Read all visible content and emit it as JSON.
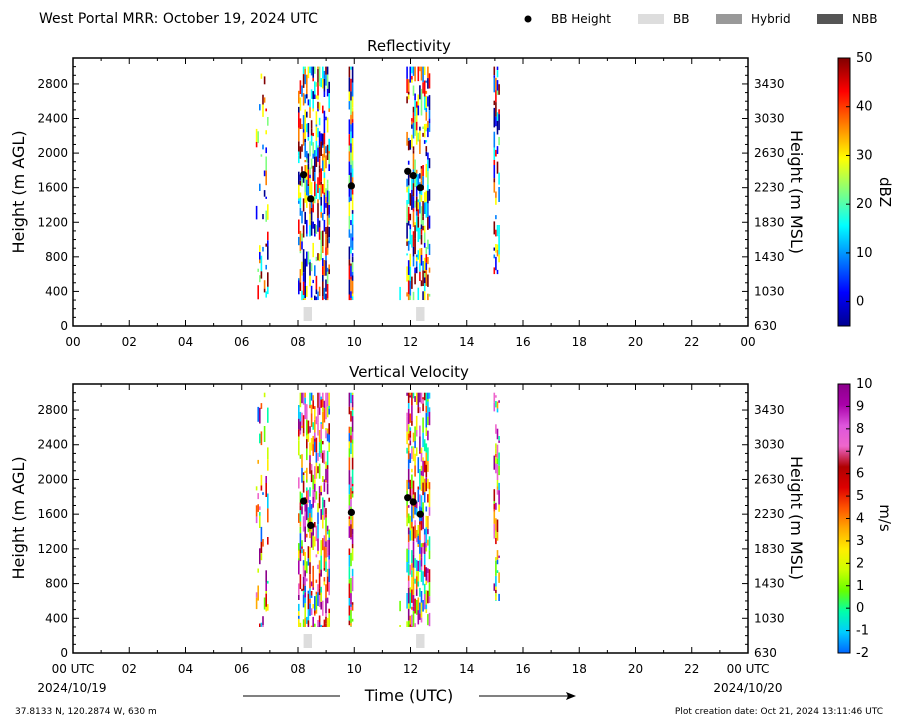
{
  "header": {
    "title": "West Portal MRR:  October 19, 2024 UTC",
    "legend": [
      {
        "label": "BB Height",
        "kind": "dot",
        "color": "#000000"
      },
      {
        "label": "BB",
        "kind": "box",
        "color": "#dddddd"
      },
      {
        "label": "Hybrid",
        "kind": "box",
        "color": "#999999"
      },
      {
        "label": "NBB",
        "kind": "box",
        "color": "#555555"
      }
    ]
  },
  "footer": {
    "location": "37.8133 N, 120.2874 W, 630 m",
    "creation": "Plot creation date: Oct 21, 2024 13:11:46 UTC",
    "xlabel": "Time (UTC)",
    "start_date": "2024/10/19",
    "end_date": "2024/10/20"
  },
  "colors": {
    "bb_band": "#dddddd",
    "marker": "#000000",
    "reflectivity_scale": [
      "#00008f",
      "#0000ff",
      "#0080ff",
      "#00ffff",
      "#80ff80",
      "#ffff00",
      "#ff8000",
      "#ff0000",
      "#800000"
    ],
    "velocity_scale": [
      "#0066ff",
      "#00ccff",
      "#00ffaa",
      "#66ff00",
      "#ccff00",
      "#ffee00",
      "#ffaa00",
      "#ff5500",
      "#dd0000",
      "#b00000",
      "#ee66cc",
      "#dd55dd",
      "#aa00aa",
      "#8b008b"
    ]
  },
  "chart_data": [
    {
      "type": "heatmap",
      "title": "Reflectivity",
      "xlabel": "",
      "ylabel": "Height (m AGL)",
      "y2label": "Height (m MSL)",
      "xlim": [
        0,
        24
      ],
      "ylim": [
        0,
        3100
      ],
      "y2lim": [
        630,
        3730
      ],
      "xticks": [
        "00",
        "02",
        "04",
        "06",
        "08",
        "10",
        "12",
        "14",
        "16",
        "18",
        "20",
        "22",
        "00"
      ],
      "yticks": [
        0,
        400,
        800,
        1200,
        1600,
        2000,
        2400,
        2800
      ],
      "y2ticks": [
        630,
        1030,
        1430,
        1830,
        2230,
        2630,
        3030,
        3430
      ],
      "colorbar": {
        "label": "dBZ",
        "range": [
          -5,
          50
        ],
        "ticks": [
          0,
          10,
          20,
          30,
          40,
          50
        ]
      },
      "echo_bands": [
        {
          "start": 6.5,
          "end": 6.9,
          "bottom": 300,
          "top": 3000,
          "density": 0.25
        },
        {
          "start": 8.0,
          "end": 9.1,
          "bottom": 300,
          "top": 3000,
          "density": 0.55
        },
        {
          "start": 9.8,
          "end": 9.95,
          "bottom": 300,
          "top": 3000,
          "density": 0.9
        },
        {
          "start": 11.6,
          "end": 11.62,
          "bottom": 300,
          "top": 600,
          "density": 0.8
        },
        {
          "start": 11.85,
          "end": 12.65,
          "bottom": 300,
          "top": 3000,
          "density": 0.6
        },
        {
          "start": 14.95,
          "end": 15.15,
          "bottom": 600,
          "top": 3000,
          "density": 0.45
        }
      ],
      "bright_band_heights": [
        {
          "time": 8.2,
          "height": 1750
        },
        {
          "time": 8.45,
          "height": 1470
        },
        {
          "time": 9.9,
          "height": 1620
        },
        {
          "time": 11.9,
          "height": 1790
        },
        {
          "time": 12.1,
          "height": 1740
        },
        {
          "time": 12.35,
          "height": 1600
        }
      ],
      "bb_flags": [
        {
          "start": 8.2,
          "end": 8.5,
          "type": "BB"
        },
        {
          "start": 12.2,
          "end": 12.5,
          "type": "BB"
        }
      ]
    },
    {
      "type": "heatmap",
      "title": "Vertical Velocity",
      "xlabel": "Time (UTC)",
      "ylabel": "Height (m AGL)",
      "y2label": "Height (m MSL)",
      "xlim": [
        0,
        24
      ],
      "ylim": [
        0,
        3100
      ],
      "y2lim": [
        630,
        3730
      ],
      "xticks": [
        "00 UTC",
        "02",
        "04",
        "06",
        "08",
        "10",
        "12",
        "14",
        "16",
        "18",
        "20",
        "22",
        "00 UTC"
      ],
      "yticks": [
        0,
        400,
        800,
        1200,
        1600,
        2000,
        2400,
        2800
      ],
      "y2ticks": [
        630,
        1030,
        1430,
        1830,
        2230,
        2630,
        3030,
        3430
      ],
      "colorbar": {
        "label": "m/s",
        "range": [
          -2,
          10
        ],
        "ticks": [
          -2,
          -1,
          0,
          1,
          2,
          3,
          4,
          5,
          6,
          7,
          8,
          9,
          10
        ]
      },
      "echo_bands": [
        {
          "start": 6.5,
          "end": 6.9,
          "bottom": 300,
          "top": 3000,
          "density": 0.25
        },
        {
          "start": 8.0,
          "end": 9.1,
          "bottom": 300,
          "top": 3000,
          "density": 0.55
        },
        {
          "start": 9.8,
          "end": 9.95,
          "bottom": 300,
          "top": 3000,
          "density": 0.9
        },
        {
          "start": 11.6,
          "end": 11.62,
          "bottom": 300,
          "top": 600,
          "density": 0.8
        },
        {
          "start": 11.85,
          "end": 12.65,
          "bottom": 300,
          "top": 3000,
          "density": 0.6
        },
        {
          "start": 14.95,
          "end": 15.15,
          "bottom": 600,
          "top": 3000,
          "density": 0.45
        }
      ],
      "bright_band_heights": [
        {
          "time": 8.2,
          "height": 1750
        },
        {
          "time": 8.45,
          "height": 1470
        },
        {
          "time": 9.9,
          "height": 1620
        },
        {
          "time": 11.9,
          "height": 1790
        },
        {
          "time": 12.1,
          "height": 1740
        },
        {
          "time": 12.35,
          "height": 1600
        }
      ],
      "bb_flags": [
        {
          "start": 8.2,
          "end": 8.5,
          "type": "BB"
        },
        {
          "start": 12.2,
          "end": 12.5,
          "type": "BB"
        }
      ]
    }
  ]
}
